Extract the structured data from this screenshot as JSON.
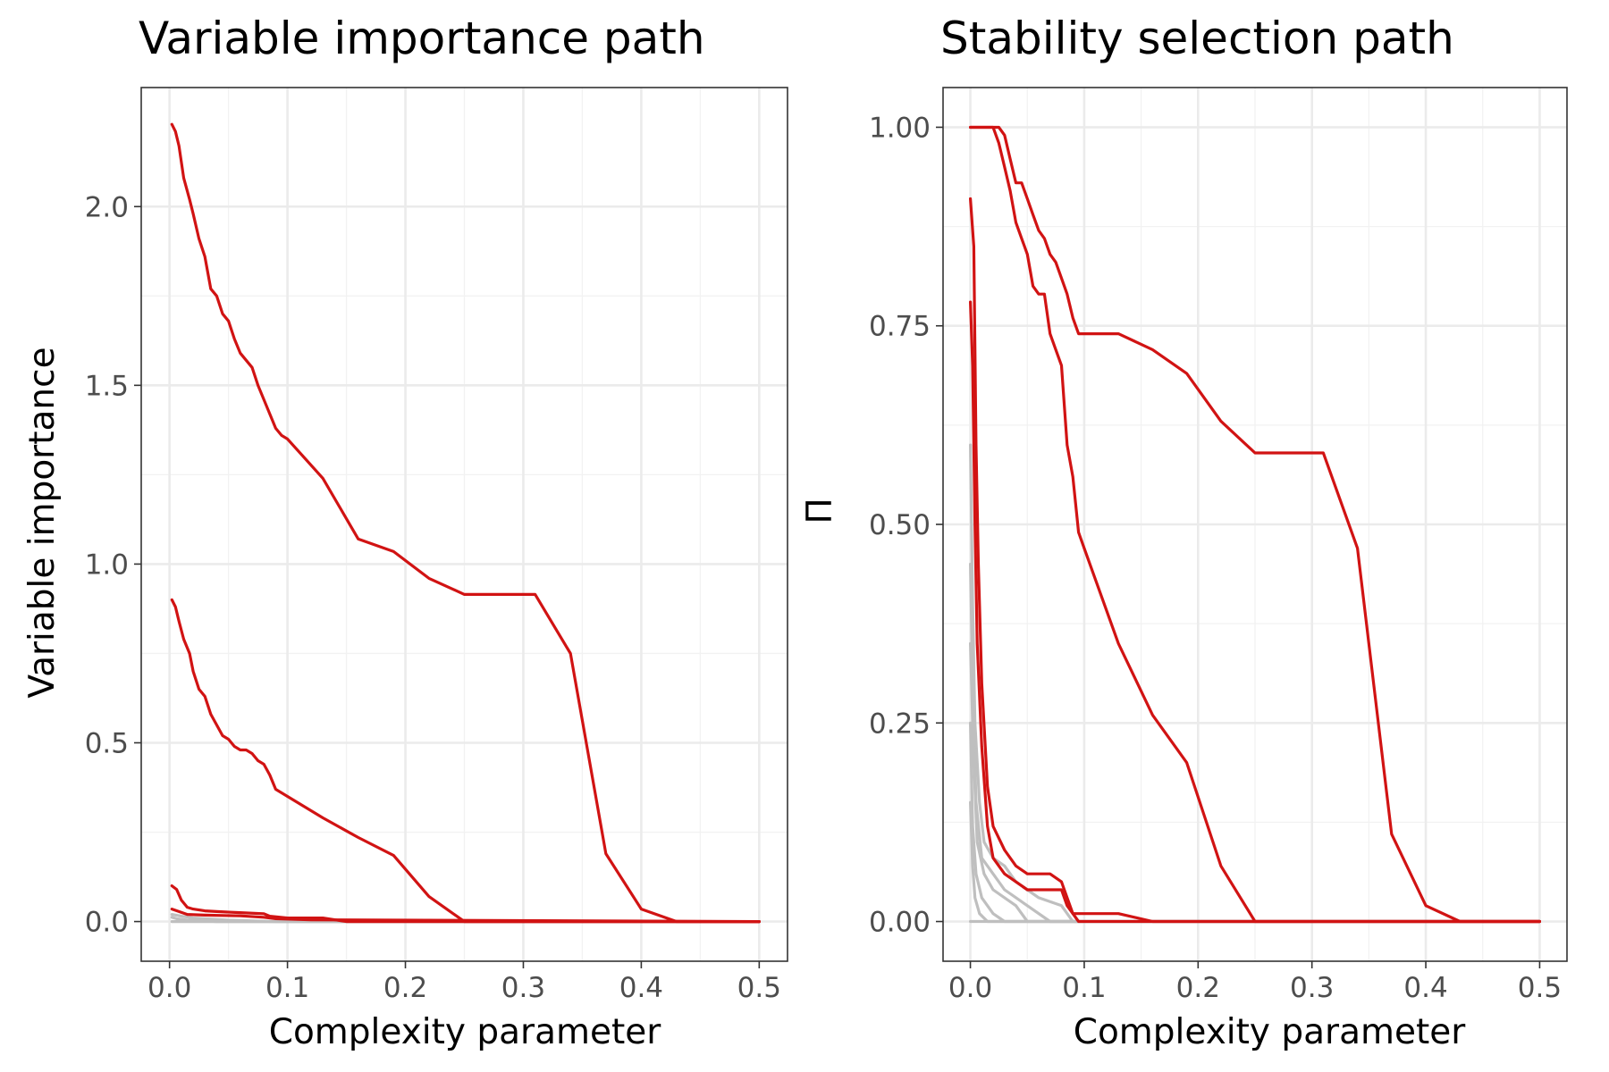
{
  "chart_data": [
    {
      "type": "line",
      "title": "Variable importance path",
      "xlabel": "Complexity parameter",
      "ylabel": "Variable importance",
      "xlim": [
        -0.024,
        0.524
      ],
      "ylim": [
        -0.111,
        2.333
      ],
      "xticks": [
        0.0,
        0.1,
        0.2,
        0.3,
        0.4,
        0.5
      ],
      "xtick_labels": [
        "0.0",
        "0.1",
        "0.2",
        "0.3",
        "0.4",
        "0.5"
      ],
      "yticks": [
        0.0,
        0.5,
        1.0,
        1.5,
        2.0
      ],
      "ytick_labels": [
        "0.0",
        "0.5",
        "1.0",
        "1.5",
        "2.0"
      ],
      "grid": true,
      "legend": "none",
      "colors": {
        "selected": "#d11313",
        "noise": "#bfbfbf"
      },
      "series": [
        {
          "group": "selected",
          "x": [
            0.002,
            0.005,
            0.008,
            0.012,
            0.017,
            0.02,
            0.025,
            0.03,
            0.035,
            0.04,
            0.045,
            0.05,
            0.055,
            0.06,
            0.065,
            0.07,
            0.075,
            0.08,
            0.085,
            0.09,
            0.095,
            0.1,
            0.13,
            0.16,
            0.19,
            0.22,
            0.25,
            0.28,
            0.31,
            0.34,
            0.37,
            0.4,
            0.43,
            0.5
          ],
          "y": [
            2.23,
            2.21,
            2.17,
            2.08,
            2.02,
            1.98,
            1.91,
            1.86,
            1.77,
            1.75,
            1.7,
            1.68,
            1.63,
            1.59,
            1.57,
            1.55,
            1.5,
            1.46,
            1.42,
            1.38,
            1.36,
            1.35,
            1.24,
            1.07,
            1.035,
            0.96,
            0.915,
            0.915,
            0.915,
            0.75,
            0.19,
            0.035,
            0.0,
            0.0
          ]
        },
        {
          "group": "selected",
          "x": [
            0.002,
            0.005,
            0.008,
            0.012,
            0.017,
            0.02,
            0.025,
            0.03,
            0.035,
            0.04,
            0.045,
            0.05,
            0.055,
            0.06,
            0.065,
            0.07,
            0.075,
            0.08,
            0.085,
            0.09,
            0.095,
            0.1,
            0.13,
            0.16,
            0.19,
            0.22,
            0.25,
            0.5
          ],
          "y": [
            0.9,
            0.88,
            0.84,
            0.79,
            0.75,
            0.7,
            0.65,
            0.63,
            0.58,
            0.55,
            0.52,
            0.51,
            0.49,
            0.48,
            0.48,
            0.47,
            0.45,
            0.44,
            0.41,
            0.37,
            0.36,
            0.35,
            0.29,
            0.235,
            0.185,
            0.07,
            0.0,
            0.0
          ]
        },
        {
          "group": "selected",
          "x": [
            0.002,
            0.006,
            0.01,
            0.015,
            0.02,
            0.03,
            0.04,
            0.06,
            0.08,
            0.085,
            0.1,
            0.13,
            0.15,
            0.5
          ],
          "y": [
            0.1,
            0.09,
            0.06,
            0.04,
            0.035,
            0.03,
            0.028,
            0.025,
            0.022,
            0.015,
            0.01,
            0.01,
            0.0,
            0.0
          ]
        },
        {
          "group": "selected",
          "x": [
            0.002,
            0.008,
            0.015,
            0.03,
            0.06,
            0.08,
            0.09,
            0.12,
            0.5
          ],
          "y": [
            0.035,
            0.028,
            0.02,
            0.018,
            0.016,
            0.012,
            0.008,
            0.005,
            0.0
          ]
        },
        {
          "group": "noise",
          "x": [
            0.002,
            0.01,
            0.02,
            0.05,
            0.09,
            0.5
          ],
          "y": [
            0.02,
            0.015,
            0.01,
            0.004,
            0.0,
            0.0
          ]
        },
        {
          "group": "noise",
          "x": [
            0.002,
            0.006,
            0.015,
            0.04,
            0.5
          ],
          "y": [
            0.012,
            0.008,
            0.004,
            0.0,
            0.0
          ]
        },
        {
          "group": "noise",
          "x": [
            0.002,
            0.5
          ],
          "y": [
            0.0,
            0.0
          ]
        }
      ]
    },
    {
      "type": "line",
      "title": "Stability selection path",
      "xlabel": "Complexity parameter",
      "ylabel": "Π",
      "xlim": [
        -0.024,
        0.524
      ],
      "ylim": [
        -0.05,
        1.05
      ],
      "xticks": [
        0.0,
        0.1,
        0.2,
        0.3,
        0.4,
        0.5
      ],
      "xtick_labels": [
        "0.0",
        "0.1",
        "0.2",
        "0.3",
        "0.4",
        "0.5"
      ],
      "yticks": [
        0.0,
        0.25,
        0.5,
        0.75,
        1.0
      ],
      "ytick_labels": [
        "0.00",
        "0.25",
        "0.50",
        "0.75",
        "1.00"
      ],
      "grid": true,
      "legend": "none",
      "colors": {
        "selected": "#d11313",
        "noise": "#bfbfbf"
      },
      "series": [
        {
          "group": "selected",
          "x": [
            0.0,
            0.02,
            0.025,
            0.03,
            0.035,
            0.04,
            0.045,
            0.05,
            0.055,
            0.06,
            0.065,
            0.07,
            0.075,
            0.08,
            0.085,
            0.09,
            0.095,
            0.1,
            0.13,
            0.16,
            0.19,
            0.22,
            0.25,
            0.28,
            0.31,
            0.34,
            0.37,
            0.4,
            0.43,
            0.5
          ],
          "y": [
            1.0,
            1.0,
            1.0,
            0.99,
            0.96,
            0.93,
            0.93,
            0.91,
            0.89,
            0.87,
            0.86,
            0.84,
            0.83,
            0.81,
            0.79,
            0.76,
            0.74,
            0.74,
            0.74,
            0.72,
            0.69,
            0.63,
            0.59,
            0.59,
            0.59,
            0.47,
            0.11,
            0.02,
            0.0,
            0.0
          ]
        },
        {
          "group": "selected",
          "x": [
            0.0,
            0.02,
            0.025,
            0.03,
            0.035,
            0.04,
            0.045,
            0.05,
            0.055,
            0.06,
            0.065,
            0.07,
            0.075,
            0.08,
            0.085,
            0.09,
            0.095,
            0.1,
            0.13,
            0.16,
            0.19,
            0.22,
            0.25,
            0.5
          ],
          "y": [
            1.0,
            1.0,
            0.98,
            0.95,
            0.92,
            0.88,
            0.86,
            0.84,
            0.8,
            0.79,
            0.79,
            0.74,
            0.72,
            0.7,
            0.6,
            0.56,
            0.49,
            0.47,
            0.35,
            0.26,
            0.2,
            0.07,
            0.0,
            0.0
          ]
        },
        {
          "group": "selected",
          "x": [
            0.0,
            0.003,
            0.005,
            0.007,
            0.01,
            0.015,
            0.02,
            0.03,
            0.04,
            0.05,
            0.07,
            0.08,
            0.085,
            0.09,
            0.1,
            0.13,
            0.16,
            0.5
          ],
          "y": [
            0.91,
            0.85,
            0.6,
            0.45,
            0.3,
            0.17,
            0.12,
            0.09,
            0.07,
            0.06,
            0.06,
            0.05,
            0.03,
            0.01,
            0.01,
            0.01,
            0.0,
            0.0
          ]
        },
        {
          "group": "selected",
          "x": [
            0.0,
            0.002,
            0.004,
            0.006,
            0.01,
            0.015,
            0.02,
            0.03,
            0.04,
            0.05,
            0.08,
            0.085,
            0.09,
            0.095,
            0.1,
            0.5
          ],
          "y": [
            0.78,
            0.7,
            0.5,
            0.35,
            0.22,
            0.12,
            0.08,
            0.06,
            0.05,
            0.04,
            0.04,
            0.02,
            0.01,
            0.0,
            0.0,
            0.0
          ]
        },
        {
          "group": "noise",
          "x": [
            0.0,
            0.002,
            0.004,
            0.008,
            0.012,
            0.02,
            0.03,
            0.04,
            0.06,
            0.08,
            0.09,
            0.5
          ],
          "y": [
            0.6,
            0.4,
            0.25,
            0.15,
            0.1,
            0.08,
            0.07,
            0.05,
            0.03,
            0.02,
            0.0,
            0.0
          ]
        },
        {
          "group": "noise",
          "x": [
            0.0,
            0.002,
            0.005,
            0.01,
            0.02,
            0.03,
            0.05,
            0.07,
            0.5
          ],
          "y": [
            0.45,
            0.3,
            0.15,
            0.08,
            0.06,
            0.04,
            0.02,
            0.0,
            0.0
          ]
        },
        {
          "group": "noise",
          "x": [
            0.0,
            0.003,
            0.006,
            0.012,
            0.02,
            0.04,
            0.05,
            0.5
          ],
          "y": [
            0.35,
            0.2,
            0.1,
            0.06,
            0.04,
            0.02,
            0.0,
            0.0
          ]
        },
        {
          "group": "noise",
          "x": [
            0.0,
            0.002,
            0.005,
            0.01,
            0.02,
            0.03,
            0.5
          ],
          "y": [
            0.25,
            0.12,
            0.06,
            0.03,
            0.01,
            0.0,
            0.0
          ]
        },
        {
          "group": "noise",
          "x": [
            0.0,
            0.002,
            0.004,
            0.008,
            0.015,
            0.5
          ],
          "y": [
            0.15,
            0.07,
            0.03,
            0.01,
            0.0,
            0.0
          ]
        },
        {
          "group": "noise",
          "x": [
            0.0,
            0.5
          ],
          "y": [
            0.0,
            0.0
          ]
        }
      ]
    }
  ]
}
